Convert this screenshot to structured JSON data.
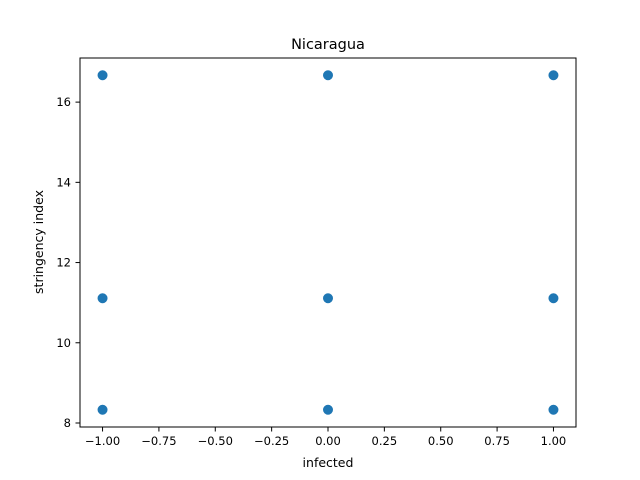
{
  "chart_data": {
    "type": "scatter",
    "title": "Nicaragua",
    "xlabel": "infected",
    "ylabel": "stringency index",
    "xlim": [
      -1.1,
      1.1
    ],
    "ylim": [
      7.9,
      17.1
    ],
    "xticks": [
      -1.0,
      -0.75,
      -0.5,
      -0.25,
      0.0,
      0.25,
      0.5,
      0.75,
      1.0
    ],
    "xtick_labels": [
      "−1.00",
      "−0.75",
      "−0.50",
      "−0.25",
      "0.00",
      "0.25",
      "0.50",
      "0.75",
      "1.00"
    ],
    "yticks": [
      8,
      10,
      12,
      14,
      16
    ],
    "ytick_labels": [
      "8",
      "10",
      "12",
      "14",
      "16"
    ],
    "grid": false,
    "legend": false,
    "colors": {
      "marker": "#1f77b4",
      "axes": "#000000",
      "background": "#ffffff"
    },
    "points": [
      {
        "x": -1,
        "y": 16.67
      },
      {
        "x": 0,
        "y": 16.67
      },
      {
        "x": 1,
        "y": 16.67
      },
      {
        "x": -1,
        "y": 11.11
      },
      {
        "x": 0,
        "y": 11.11
      },
      {
        "x": 1,
        "y": 11.11
      },
      {
        "x": -1,
        "y": 8.33
      },
      {
        "x": 0,
        "y": 8.33
      },
      {
        "x": 1,
        "y": 8.33
      }
    ]
  }
}
